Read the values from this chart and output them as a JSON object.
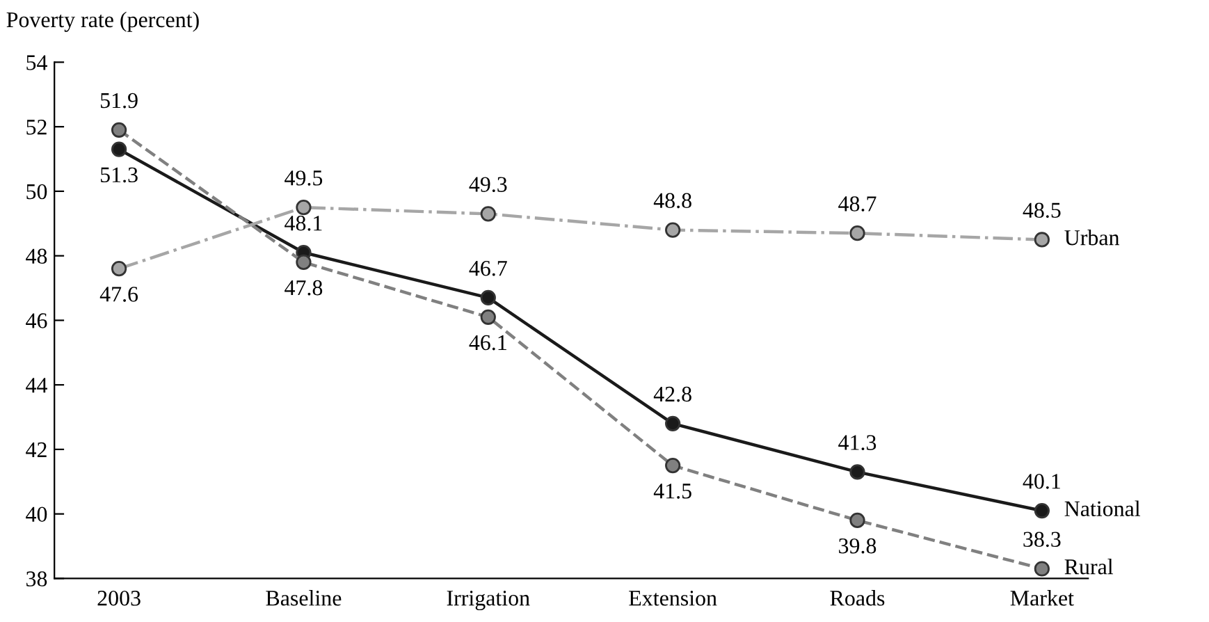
{
  "chart_data": {
    "type": "line",
    "ylabel": "Poverty rate (percent)",
    "categories": [
      "2003",
      "Baseline",
      "Irrigation",
      "Extension",
      "Roads",
      "Market"
    ],
    "series": [
      {
        "name": "National",
        "color": "#1a1a1a",
        "line_style": "solid",
        "values": [
          51.3,
          48.1,
          46.7,
          42.8,
          41.3,
          40.1
        ]
      },
      {
        "name": "Rural",
        "color": "#808080",
        "line_style": "dashed",
        "values": [
          51.9,
          47.8,
          46.1,
          41.5,
          39.8,
          38.3
        ]
      },
      {
        "name": "Urban",
        "color": "#a6a6a6",
        "line_style": "dashdot",
        "values": [
          47.6,
          49.5,
          49.3,
          48.8,
          48.7,
          48.5
        ]
      }
    ],
    "ylim": [
      38,
      54
    ],
    "yticks": [
      38,
      40,
      42,
      44,
      46,
      48,
      50,
      52,
      54
    ],
    "marker": "circle",
    "data_labels": true,
    "grid": false,
    "legend": false
  }
}
